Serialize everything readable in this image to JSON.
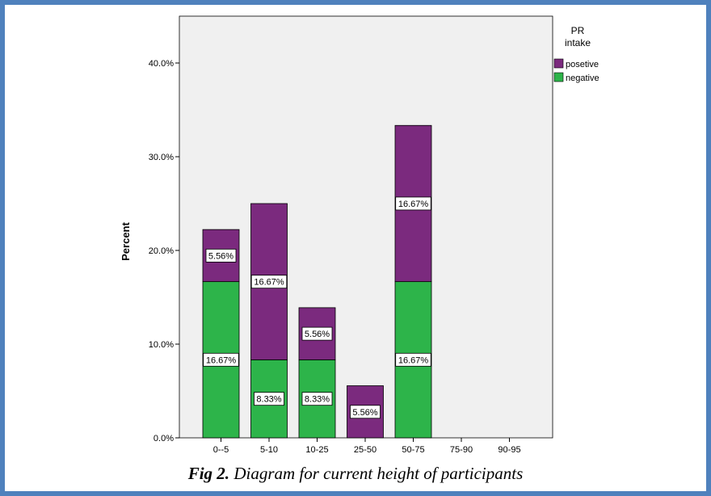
{
  "caption": {
    "label": "Fig 2.",
    "text": "Diagram for current height of participants"
  },
  "chart_data": {
    "type": "bar",
    "stacked": true,
    "categories": [
      "0--5",
      "5-10",
      "10-25",
      "25-50",
      "50-75",
      "75-90",
      "90-95"
    ],
    "series": [
      {
        "name": "negative",
        "color": "#2db44a",
        "values": [
          16.67,
          8.33,
          8.33,
          0,
          16.67,
          0,
          0
        ]
      },
      {
        "name": "posetive",
        "color": "#7b2a7e",
        "values": [
          5.56,
          16.67,
          5.56,
          5.56,
          16.67,
          0,
          0
        ]
      }
    ],
    "data_labels": {
      "negative": [
        "16.67%",
        "8.33%",
        "8.33%",
        "",
        "16.67%",
        "",
        ""
      ],
      "posetive": [
        "5.56%",
        "16.67%",
        "5.56%",
        "5.56%",
        "16.67%",
        "",
        ""
      ]
    },
    "ylabel": "Percent",
    "xlabel": "",
    "ylim": [
      0,
      45
    ],
    "yticks": [
      {
        "value": 0,
        "label": "0.0%"
      },
      {
        "value": 10,
        "label": "10.0%"
      },
      {
        "value": 20,
        "label": "20.0%"
      },
      {
        "value": 30,
        "label": "30.0%"
      },
      {
        "value": 40,
        "label": "40.0%"
      }
    ],
    "legend": {
      "title_line1": "PR",
      "title_line2": "intake",
      "placement": "top-right outside plot",
      "order": [
        "posetive",
        "negative"
      ]
    },
    "plot_background": "#f0f0f0",
    "grid": false
  }
}
